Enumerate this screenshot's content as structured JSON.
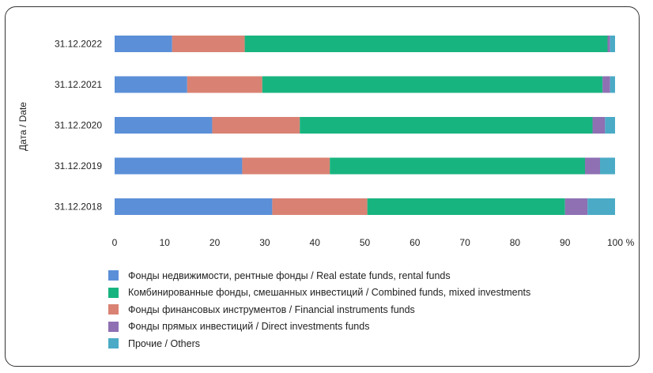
{
  "chart_data": {
    "type": "bar",
    "orientation": "horizontal",
    "stacked": true,
    "title": "",
    "ylabel": "Дата / Date",
    "xlabel": "",
    "x_unit": "%",
    "xlim": [
      0,
      100
    ],
    "x_ticks": [
      0,
      10,
      20,
      30,
      40,
      50,
      60,
      70,
      80,
      90,
      100
    ],
    "grid": false,
    "legend_position": "bottom-left",
    "categories": [
      "31.12.2022",
      "31.12.2021",
      "31.12.2020",
      "31.12.2019",
      "31.12.2018"
    ],
    "series": [
      {
        "name": "Фонды  недвижимости, рентные фонды / Real estate funds, rental funds",
        "color": "#5b8fd8",
        "values": [
          11.5,
          14.5,
          19.5,
          25.5,
          31.5
        ]
      },
      {
        "name": "Фонды финансовых инструментов / Financial instruments funds",
        "color": "#d98273",
        "values": [
          14.5,
          15.0,
          17.5,
          17.5,
          19.0
        ]
      },
      {
        "name": "Комбинированные фонды, смешанных инвестиций / Combined funds, mixed investments",
        "color": "#18b47f",
        "values": [
          72.5,
          68.0,
          58.5,
          51.0,
          39.5
        ]
      },
      {
        "name": "Фонды прямых инвестиций / Direct investments funds",
        "color": "#8f70b3",
        "values": [
          0.5,
          1.5,
          2.5,
          3.0,
          4.5
        ]
      },
      {
        "name": "Прочие / Others",
        "color": "#4babc6",
        "values": [
          1.0,
          1.0,
          2.0,
          3.0,
          5.5
        ]
      }
    ],
    "legend_order": [
      0,
      2,
      1,
      3,
      4
    ]
  }
}
